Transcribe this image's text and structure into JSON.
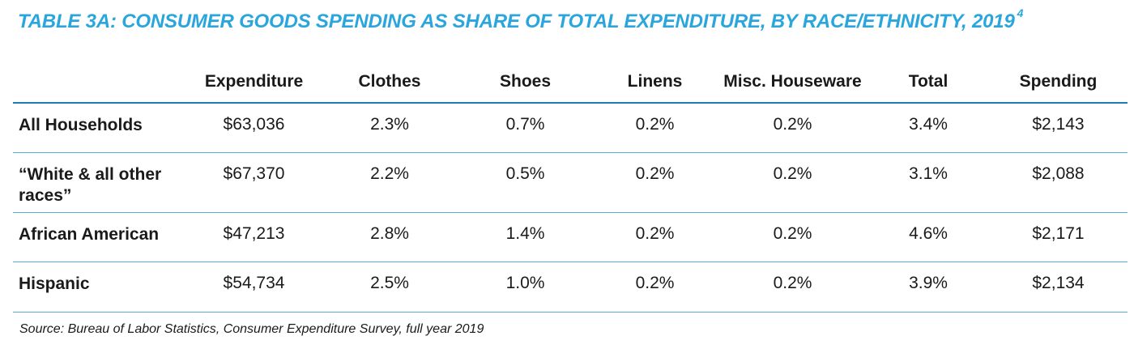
{
  "title": "TABLE 3A: CONSUMER GOODS SPENDING AS SHARE OF TOTAL EXPENDITURE, BY RACE/ETHNICITY, 2019",
  "title_footnote": "4",
  "columns": [
    "",
    "Expenditure",
    "Clothes",
    "Shoes",
    "Linens",
    "Misc. Houseware",
    "Total",
    "Spending"
  ],
  "rows": [
    {
      "label": "All Households",
      "values": [
        "$63,036",
        "2.3%",
        "0.7%",
        "0.2%",
        "0.2%",
        "3.4%",
        "$2,143"
      ]
    },
    {
      "label": "“White & all other races”",
      "values": [
        "$67,370",
        "2.2%",
        "0.5%",
        "0.2%",
        "0.2%",
        "3.1%",
        "$2,088"
      ]
    },
    {
      "label": "African American",
      "values": [
        "$47,213",
        "2.8%",
        "1.4%",
        "0.2%",
        "0.2%",
        "4.6%",
        "$2,171"
      ]
    },
    {
      "label": "Hispanic",
      "values": [
        "$54,734",
        "2.5%",
        "1.0%",
        "0.2%",
        "0.2%",
        "3.9%",
        "$2,134"
      ]
    }
  ],
  "source": "Source: Bureau of Labor Statistics, Consumer Expenditure Survey, full year 2019",
  "colors": {
    "title": "#2aa6dc",
    "rule": "#1e7fae",
    "row_rule": "#5aaed5"
  }
}
